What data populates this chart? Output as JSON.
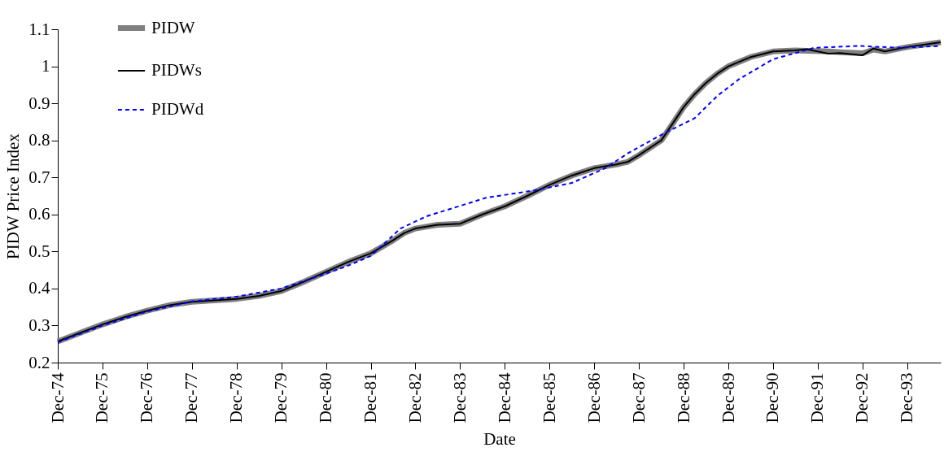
{
  "chart_data": {
    "type": "line",
    "xlabel": "Date",
    "ylabel": "PIDW  Price  Index",
    "xlim": [
      "1974-12",
      "1994-09"
    ],
    "xticks": [
      {
        "value": "1974-12",
        "label": "Dec-74"
      },
      {
        "value": "1975-12",
        "label": "Dec-75"
      },
      {
        "value": "1976-12",
        "label": "Dec-76"
      },
      {
        "value": "1977-12",
        "label": "Dec-77"
      },
      {
        "value": "1978-12",
        "label": "Dec-78"
      },
      {
        "value": "1979-12",
        "label": "Dec-79"
      },
      {
        "value": "1980-12",
        "label": "Dec-80"
      },
      {
        "value": "1981-12",
        "label": "Dec-81"
      },
      {
        "value": "1982-12",
        "label": "Dec-82"
      },
      {
        "value": "1983-12",
        "label": "Dec-83"
      },
      {
        "value": "1984-12",
        "label": "Dec-84"
      },
      {
        "value": "1985-12",
        "label": "Dec-85"
      },
      {
        "value": "1986-12",
        "label": "Dec-86"
      },
      {
        "value": "1987-12",
        "label": "Dec-87"
      },
      {
        "value": "1988-12",
        "label": "Dec-88"
      },
      {
        "value": "1989-12",
        "label": "Dec-89"
      },
      {
        "value": "1990-12",
        "label": "Dec-90"
      },
      {
        "value": "1991-12",
        "label": "Dec-91"
      },
      {
        "value": "1992-12",
        "label": "Dec-92"
      },
      {
        "value": "1993-12",
        "label": "Dec-93"
      }
    ],
    "ylim": [
      0.2,
      1.1
    ],
    "yticks": [
      0.2,
      0.3,
      0.4,
      0.5,
      0.6,
      0.7,
      0.8,
      0.9,
      1,
      1.1
    ],
    "grid": false,
    "legend": "top left",
    "marker": "none",
    "series": [
      {
        "name": "PIDW",
        "color": "#808080",
        "line_style": "solid",
        "x": [
          "1974-12",
          "1975-06",
          "1975-12",
          "1976-06",
          "1976-12",
          "1977-06",
          "1977-12",
          "1978-06",
          "1978-12",
          "1979-06",
          "1979-12",
          "1980-06",
          "1980-12",
          "1981-06",
          "1981-12",
          "1982-06",
          "1982-09",
          "1982-12",
          "1983-06",
          "1983-12",
          "1984-06",
          "1984-12",
          "1985-06",
          "1985-12",
          "1986-06",
          "1986-12",
          "1987-06",
          "1987-09",
          "1987-12",
          "1988-03",
          "1988-06",
          "1988-09",
          "1988-12",
          "1989-03",
          "1989-06",
          "1989-09",
          "1989-12",
          "1990-06",
          "1990-12",
          "1991-06",
          "1991-09",
          "1992-03",
          "1992-06",
          "1992-12",
          "1993-03",
          "1993-06",
          "1993-12",
          "1994-09"
        ],
        "values": [
          0.257,
          0.28,
          0.303,
          0.323,
          0.34,
          0.355,
          0.364,
          0.368,
          0.372,
          0.38,
          0.393,
          0.418,
          0.445,
          0.472,
          0.495,
          0.53,
          0.55,
          0.562,
          0.572,
          0.575,
          0.6,
          0.622,
          0.65,
          0.68,
          0.705,
          0.725,
          0.735,
          0.742,
          0.76,
          0.78,
          0.8,
          0.845,
          0.89,
          0.925,
          0.955,
          0.98,
          1.0,
          1.025,
          1.04,
          1.043,
          1.042,
          1.04,
          1.038,
          1.035,
          1.045,
          1.04,
          1.052,
          1.065
        ]
      },
      {
        "name": "PIDWs",
        "color": "#000000",
        "line_style": "solid",
        "x": [
          "1974-12",
          "1975-06",
          "1975-12",
          "1976-06",
          "1976-12",
          "1977-06",
          "1977-12",
          "1978-06",
          "1978-12",
          "1979-06",
          "1979-12",
          "1980-06",
          "1980-12",
          "1981-06",
          "1981-12",
          "1982-06",
          "1982-09",
          "1982-12",
          "1983-06",
          "1983-12",
          "1984-06",
          "1984-12",
          "1985-06",
          "1985-12",
          "1986-06",
          "1986-12",
          "1987-06",
          "1987-09",
          "1987-12",
          "1988-03",
          "1988-06",
          "1988-09",
          "1988-12",
          "1989-03",
          "1989-06",
          "1989-09",
          "1989-12",
          "1990-06",
          "1990-12",
          "1991-06",
          "1991-09",
          "1992-03",
          "1992-06",
          "1992-12",
          "1993-03",
          "1993-06",
          "1993-12",
          "1994-09"
        ],
        "values": [
          0.257,
          0.28,
          0.303,
          0.323,
          0.34,
          0.355,
          0.364,
          0.368,
          0.372,
          0.38,
          0.393,
          0.418,
          0.445,
          0.472,
          0.495,
          0.53,
          0.55,
          0.562,
          0.572,
          0.575,
          0.6,
          0.622,
          0.65,
          0.68,
          0.705,
          0.725,
          0.735,
          0.742,
          0.76,
          0.78,
          0.8,
          0.845,
          0.89,
          0.925,
          0.955,
          0.98,
          1.0,
          1.025,
          1.04,
          1.043,
          1.046,
          1.034,
          1.036,
          1.03,
          1.048,
          1.04,
          1.052,
          1.065
        ]
      },
      {
        "name": "PIDWd",
        "color": "#0000ff",
        "line_style": "dashed",
        "x": [
          "1974-12",
          "1975-12",
          "1976-12",
          "1977-12",
          "1978-12",
          "1979-12",
          "1980-12",
          "1981-06",
          "1981-12",
          "1982-08",
          "1983-03",
          "1983-11",
          "1984-07",
          "1985-08",
          "1986-06",
          "1987-03",
          "1987-09",
          "1988-06",
          "1989-03",
          "1989-09",
          "1990-03",
          "1990-12",
          "1991-11",
          "1992-11",
          "1993-10",
          "1994-09"
        ],
        "values": [
          0.255,
          0.3,
          0.338,
          0.365,
          0.378,
          0.4,
          0.44,
          0.462,
          0.488,
          0.562,
          0.595,
          0.62,
          0.645,
          0.665,
          0.685,
          0.725,
          0.765,
          0.815,
          0.86,
          0.92,
          0.966,
          1.019,
          1.05,
          1.055,
          1.05,
          1.055
        ]
      }
    ]
  }
}
